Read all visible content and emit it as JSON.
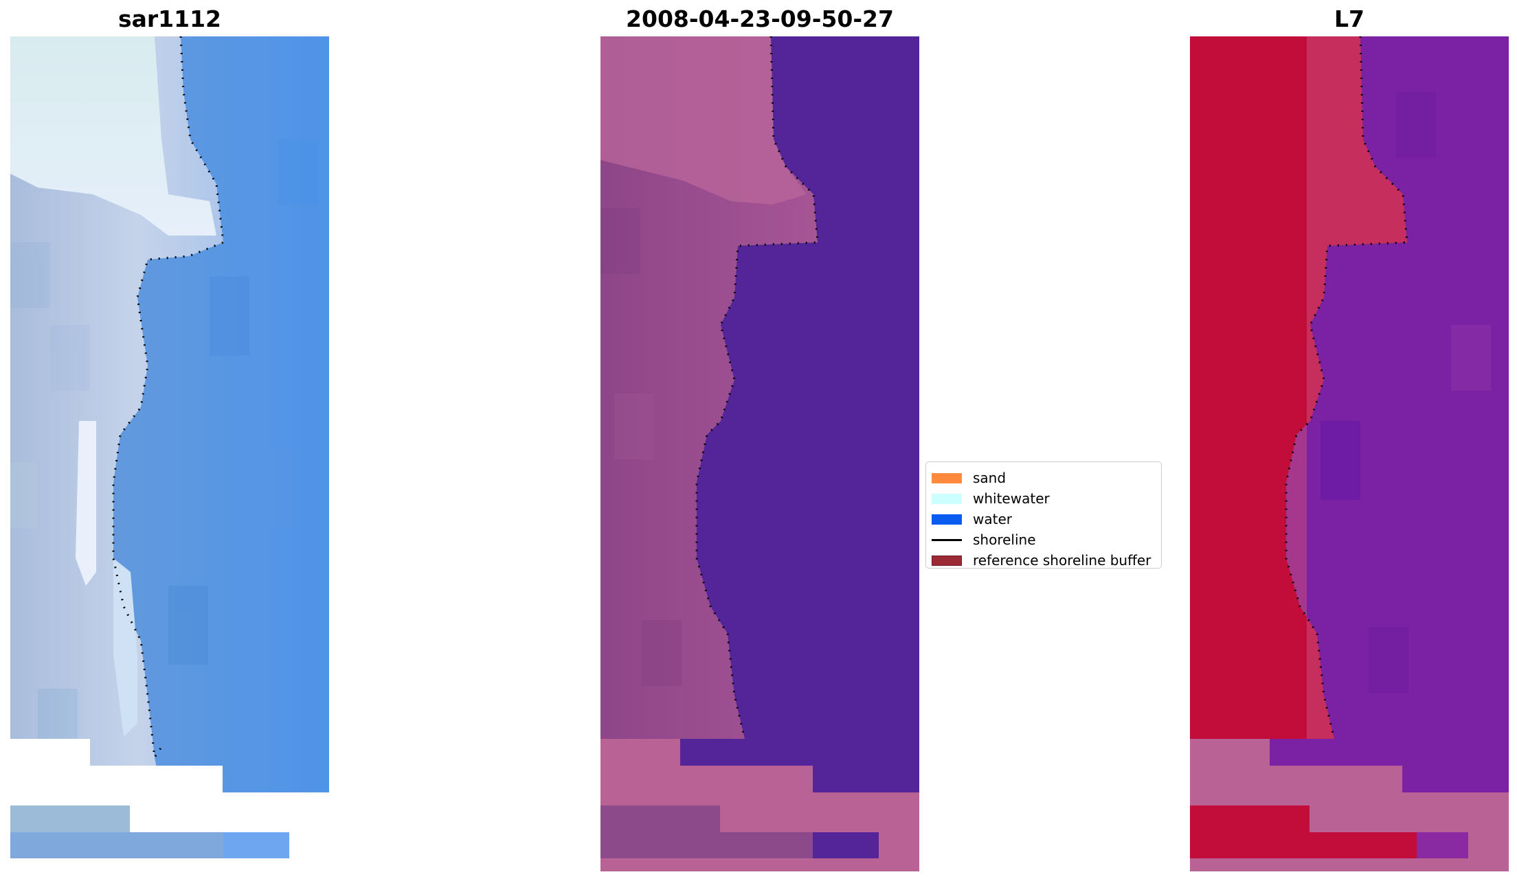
{
  "panels": [
    {
      "title": "sar1112"
    },
    {
      "title": "2008-04-23-09-50-27"
    },
    {
      "title": "L7"
    }
  ],
  "legend": {
    "items": [
      {
        "label": "sand",
        "color": "#ff8a3d",
        "kind": "patch"
      },
      {
        "label": "whitewater",
        "color": "#ccffff",
        "kind": "patch"
      },
      {
        "label": "water",
        "color": "#0a5cf0",
        "kind": "patch"
      },
      {
        "label": "shoreline",
        "color": "#000000",
        "kind": "line"
      },
      {
        "label": "reference shoreline buffer",
        "color": "#9c2a36",
        "kind": "patch"
      }
    ]
  },
  "colors": {
    "rgb_land": "#b9c9e2",
    "rgb_whitewater": "#d9eef3",
    "rgb_water": "#5b93dd",
    "class_land": "#9a4b8e",
    "class_water": "#542599",
    "class_nodata": "#b96296",
    "index_land": "#c20d3b",
    "index_water": "#7a22a3",
    "index_nodata": "#b96296"
  }
}
